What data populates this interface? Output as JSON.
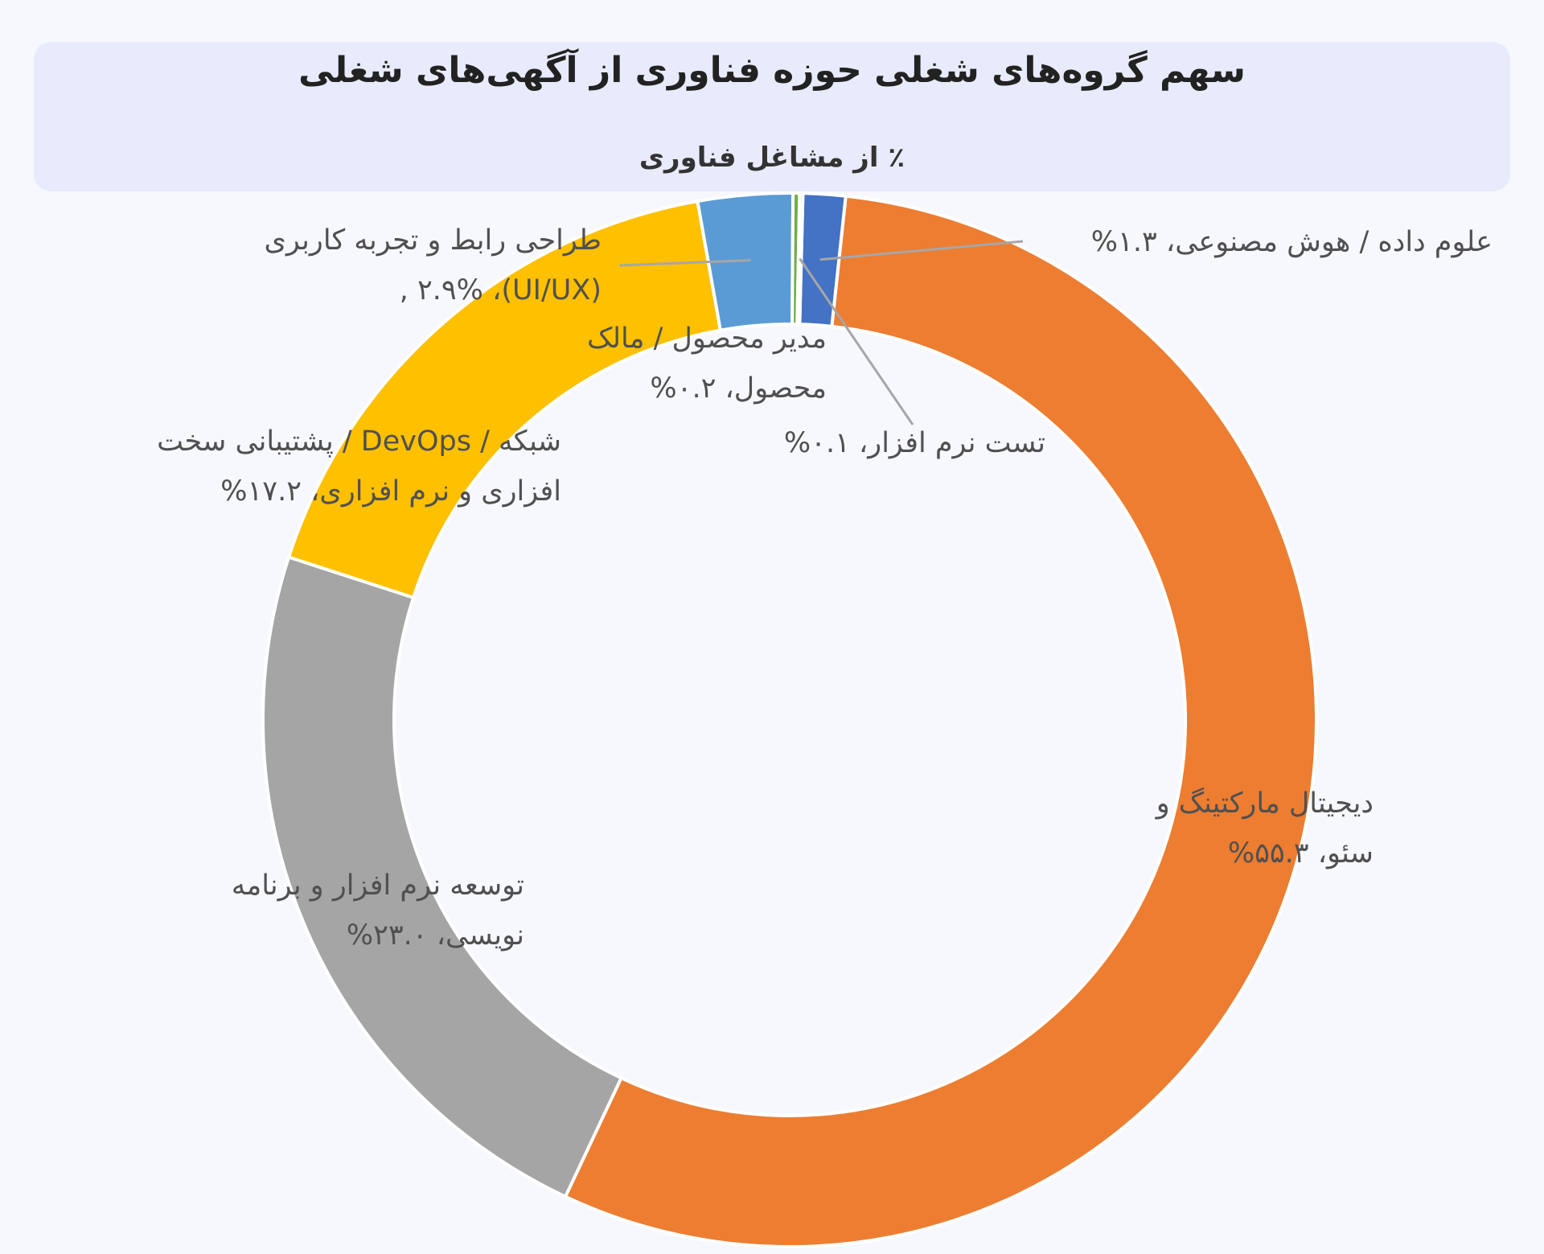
{
  "chart_data": {
    "type": "pie",
    "style": "donut",
    "title": "سهم گروه‌های شغلی حوزه فناوری از آگهی‌های شغلی",
    "subtitle": "٪ از مشاغل فناوری",
    "slices": [
      {
        "label_line1": "علوم داده / هوش مصنوعی، ۱.۳%",
        "label_line2": "",
        "value": 1.3,
        "color": "#4472c4"
      },
      {
        "label_line1": "دیجیتال مارکتینگ و",
        "label_line2": "سئو، ۵۵.۳%",
        "value": 55.3,
        "color": "#ed7d31"
      },
      {
        "label_line1": "توسعه نرم افزار و برنامه",
        "label_line2": "نویسی، ۲۳.۰%",
        "value": 23.0,
        "color": "#a5a5a5"
      },
      {
        "label_line1": "شبکه / DevOps / پشتیبانی سخت",
        "label_line2": "افزاری و نرم افزاری، ۱۷.۲%",
        "value": 17.2,
        "color": "#ffc000"
      },
      {
        "label_line1": "طراحی رابط و تجربه کاربری",
        "label_line2": "(UI/UX)، ۲.۹% ,",
        "value": 2.9,
        "color": "#5b9bd5"
      },
      {
        "label_line1": "مدیر محصول / مالک",
        "label_line2": "محصول، ۰.۲%",
        "value": 0.2,
        "color": "#70ad47"
      },
      {
        "label_line1": "تست نرم افزار، ۰.۱%",
        "label_line2": "",
        "value": 0.1,
        "color": "#264478"
      }
    ]
  }
}
